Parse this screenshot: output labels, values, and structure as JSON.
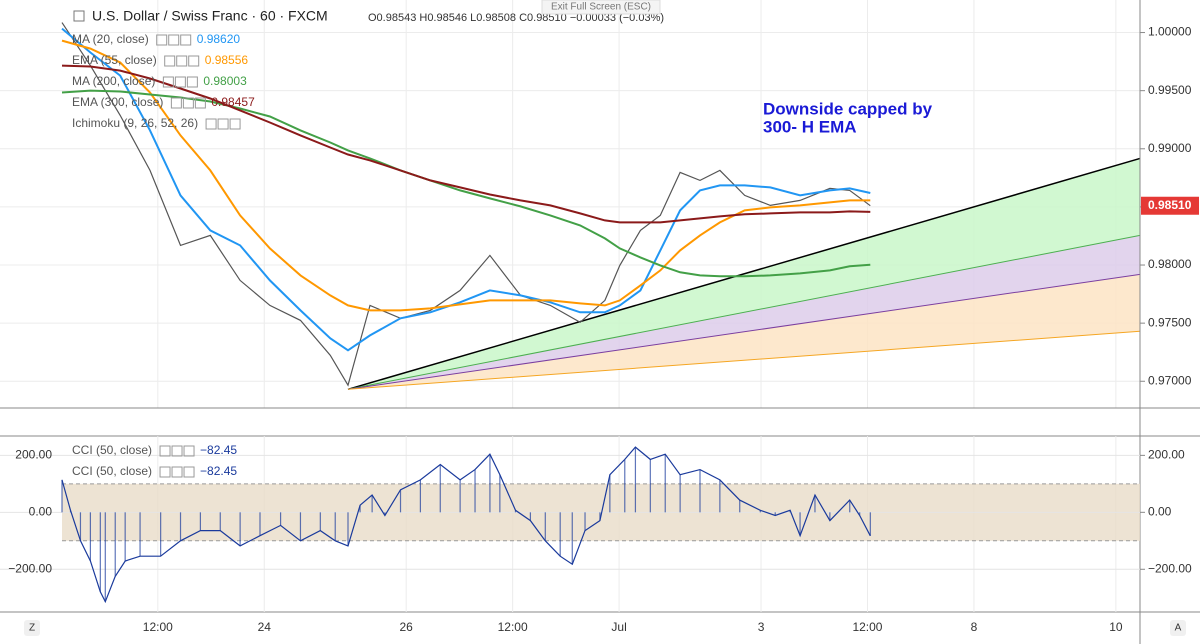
{
  "header": {
    "symbol": "U.S. Dollar / Swiss Franc · 60 · FXCM",
    "ohlc": "O0.98543  H0.98546  L0.98508  C0.98510  −0.00033 (−0.03%)",
    "exit": "Exit Full Screen (ESC)",
    "corner_left": "Z",
    "corner_right": "A"
  },
  "chart_data": [
    {
      "type": "line",
      "x": [
        -2.85,
        -2.45,
        -2.03,
        -1.61,
        -1.18,
        -0.76,
        -0.34,
        0.08,
        0.51,
        0.93,
        1.18,
        1.49,
        1.92,
        2.34,
        2.76,
        3.18,
        3.61,
        4.03,
        4.45,
        4.8,
        5.01,
        5.3,
        5.58,
        5.86,
        6.14,
        6.42,
        6.77,
        7.13,
        7.55,
        7.97,
        8.25,
        8.54
      ],
      "xlim": [
        -2.85,
        12.34
      ],
      "ylim": [
        0.9677,
        1.0028
      ],
      "yticks": [
        {
          "value": 0.97,
          "label": "0.97000"
        },
        {
          "value": 0.975,
          "label": "0.97500"
        },
        {
          "value": 0.98,
          "label": "0.98000"
        },
        {
          "value": 0.985,
          "label": "0.98500"
        },
        {
          "value": 0.99,
          "label": "0.99000"
        },
        {
          "value": 0.995,
          "label": "0.99500"
        },
        {
          "value": 1.0,
          "label": "1.00000"
        }
      ],
      "grid": true,
      "series": [
        {
          "color": "#555555",
          "values": [
            1.00086,
            0.99716,
            0.99287,
            0.98814,
            0.98169,
            0.98255,
            0.97868,
            0.97653,
            0.97524,
            0.97223,
            0.96966,
            0.97653,
            0.97542,
            0.9761,
            0.97782,
            0.98083,
            0.97739,
            0.97653,
            0.97507,
            0.97696,
            0.97997,
            0.98298,
            0.98427,
            0.98797,
            0.98728,
            0.98814,
            0.98599,
            0.98513,
            0.98556,
            0.98659,
            0.98642,
            0.9851
          ],
          "last_label": "0.98510"
        },
        {
          "name": "MA (20, close)",
          "color": "#2196f3",
          "values": [
            1.00034,
            0.99828,
            0.9963,
            0.99158,
            0.98599,
            0.98298,
            0.98169,
            0.97868,
            0.9761,
            0.9737,
            0.97266,
            0.97395,
            0.97542,
            0.97593,
            0.97679,
            0.97782,
            0.97739,
            0.97679,
            0.97593,
            0.97593,
            0.97653,
            0.97782,
            0.98126,
            0.9847,
            0.98642,
            0.98685,
            0.98685,
            0.98668,
            0.98599,
            0.98642,
            0.98659,
            0.9862
          ],
          "last_label": "0.98620"
        },
        {
          "name": "EMA (55, close)",
          "color": "#ff9800",
          "values": [
            0.99931,
            0.99862,
            0.99742,
            0.99484,
            0.99115,
            0.98814,
            0.98427,
            0.98143,
            0.97911,
            0.97739,
            0.97653,
            0.9761,
            0.9761,
            0.97627,
            0.97661,
            0.97696,
            0.97696,
            0.97696,
            0.9767,
            0.97653,
            0.97696,
            0.97825,
            0.97954,
            0.98126,
            0.98255,
            0.98367,
            0.9847,
            0.98496,
            0.98513,
            0.98539,
            0.98556,
            0.98556
          ],
          "last_label": "0.98556"
        },
        {
          "name": "MA (200, close)",
          "color": "#43a047",
          "values": [
            0.99484,
            0.99501,
            0.99493,
            0.99467,
            0.99441,
            0.99407,
            0.99347,
            0.99278,
            0.99158,
            0.99054,
            0.98986,
            0.98917,
            0.98814,
            0.98728,
            0.98642,
            0.98573,
            0.98504,
            0.98427,
            0.98341,
            0.98229,
            0.98143,
            0.98066,
            0.97997,
            0.97937,
            0.97911,
            0.97903,
            0.97903,
            0.97911,
            0.97928,
            0.97954,
            0.97989,
            0.98003
          ],
          "last_label": "0.98003"
        },
        {
          "name": "EMA (300, close)",
          "color": "#8b1a1a",
          "values": [
            0.99716,
            0.99708,
            0.99673,
            0.99605,
            0.99519,
            0.99433,
            0.9933,
            0.99226,
            0.99115,
            0.99011,
            0.98951,
            0.989,
            0.98814,
            0.98728,
            0.98668,
            0.98607,
            0.98556,
            0.98513,
            0.98444,
            0.98384,
            0.98367,
            0.98367,
            0.98367,
            0.98384,
            0.98401,
            0.98418,
            0.98436,
            0.98444,
            0.98453,
            0.98453,
            0.98461,
            0.98457
          ],
          "last_label": "0.98457"
        }
      ],
      "legend_extra": "Ichimoku (9, 26, 52, 26)",
      "annotation": [
        "Downside capped by",
        "300- H EMA"
      ],
      "annotation_color": "#1a1ad6",
      "fan": {
        "x": [
          1.18,
          12.34
        ],
        "lines": [
          {
            "color": "#000000",
            "values": [
              0.96931,
              0.98917
            ]
          },
          {
            "color": "#4caf50",
            "values": [
              0.96931,
              0.98255
            ]
          },
          {
            "color": "#7b3fa0",
            "values": [
              0.96931,
              0.9792
            ]
          },
          {
            "color": "#f5a623",
            "values": [
              0.96931,
              0.9743
            ]
          }
        ],
        "fills": [
          "#c9f7c9",
          "#ddcdea",
          "#fde4c4"
        ]
      }
    },
    {
      "type": "line",
      "x": [
        -2.85,
        -2.73,
        -2.59,
        -2.45,
        -2.31,
        -2.24,
        -2.1,
        -1.96,
        -1.75,
        -1.46,
        -1.18,
        -0.9,
        -0.62,
        -0.34,
        -0.06,
        0.23,
        0.51,
        0.79,
        1.0,
        1.18,
        1.35,
        1.52,
        1.7,
        1.92,
        2.2,
        2.48,
        2.76,
        2.97,
        3.18,
        3.32,
        3.54,
        3.75,
        3.96,
        4.17,
        4.34,
        4.52,
        4.73,
        4.87,
        5.08,
        5.23,
        5.44,
        5.65,
        5.86,
        6.14,
        6.42,
        6.7,
        6.99,
        7.2,
        7.41,
        7.55,
        7.76,
        7.97,
        8.25,
        8.39,
        8.54
      ],
      "xlim": [
        -2.85,
        12.34
      ],
      "xticks": [
        {
          "value": -1.5,
          "label": "12:00"
        },
        {
          "value": 0,
          "label": "24"
        },
        {
          "value": 2,
          "label": "26"
        },
        {
          "value": 3.5,
          "label": "12:00"
        },
        {
          "value": 5,
          "label": "Jul"
        },
        {
          "value": 7,
          "label": "3"
        },
        {
          "value": 8.5,
          "label": "12:00"
        },
        {
          "value": 10,
          "label": "8"
        },
        {
          "value": 12,
          "label": "10"
        }
      ],
      "ylim": [
        -350,
        268
      ],
      "yticks": [
        {
          "value": 200,
          "label": "200.00"
        },
        {
          "value": 0,
          "label": "0.00"
        },
        {
          "value": -200,
          "label": "−200.00"
        }
      ],
      "band": [
        -100,
        100
      ],
      "band_color": "#e9dcc8",
      "series": [
        {
          "color": "#1a3a9c",
          "values": [
            114,
            7,
            -100,
            -171,
            -279,
            -314,
            -225,
            -171,
            -154,
            -154,
            -100,
            -64,
            -64,
            -118,
            -82,
            -46,
            -100,
            -64,
            -100,
            -118,
            25,
            61,
            -11,
            79,
            114,
            168,
            114,
            150,
            204,
            132,
            7,
            -29,
            -100,
            -154,
            -182,
            -64,
            -29,
            132,
            186,
            229,
            186,
            204,
            132,
            150,
            114,
            43,
            7,
            -11,
            7,
            -82,
            61,
            -29,
            43,
            -11,
            -82.45
          ]
        }
      ],
      "legend": [
        {
          "name": "CCI (50, close)",
          "label": "−82.45"
        },
        {
          "name": "CCI (50, close)",
          "label": "−82.45"
        }
      ]
    }
  ]
}
